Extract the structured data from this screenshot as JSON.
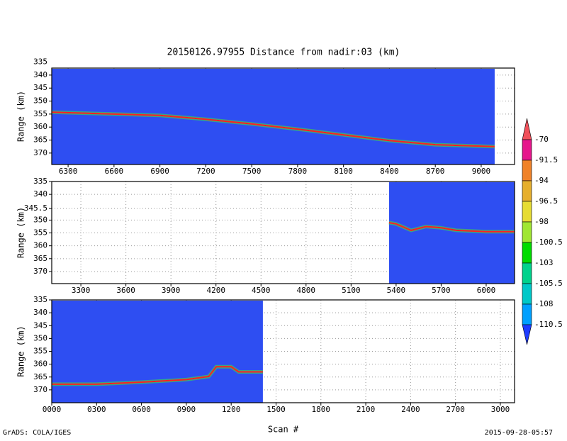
{
  "title": "20150126.97955    Distance from nadir:03 (km)",
  "footer_left": "GrADS: COLA/IGES",
  "footer_right": "2015-09-28-05:57",
  "field_color": "#2e4ef2",
  "chart_data": [
    {
      "type": "line",
      "y_label": "Range (km)",
      "y_inverted": true,
      "grid": true,
      "xlim": [
        6193,
        9218
      ],
      "ylim": [
        337.3,
        374.4
      ],
      "xticks": [
        6300,
        6600,
        6900,
        7200,
        7500,
        7800,
        8100,
        8400,
        8700,
        9000
      ],
      "yticks": [
        335,
        340,
        345,
        350,
        355,
        360,
        365,
        370
      ],
      "series": [
        {
          "color": "#ff2020",
          "x": [
            6193,
            6600,
            6900,
            7200,
            7500,
            7800,
            8100,
            8400,
            8700,
            9088
          ],
          "values": [
            354.3,
            355,
            355.5,
            357,
            358.8,
            360.8,
            363,
            365.2,
            366.8,
            367.5
          ]
        }
      ]
    },
    {
      "type": "line",
      "y_label": "Range (km)",
      "y_inverted": true,
      "grid": true,
      "xlim": [
        3106,
        6189
      ],
      "ylim": [
        335,
        374.7
      ],
      "xticks": [
        3300,
        3600,
        3900,
        4200,
        4500,
        4800,
        5100,
        5400,
        5700,
        6000
      ],
      "yticks": [
        335,
        340,
        345.5,
        350,
        355,
        360,
        365,
        370
      ],
      "series": [
        {
          "color": "#ff2020",
          "x": [
            5353,
            5400,
            5500,
            5600,
            5700,
            5800,
            6000,
            6189
          ],
          "values": [
            351,
            351.5,
            354,
            352.5,
            353,
            354,
            354.5,
            354.5
          ]
        }
      ]
    },
    {
      "type": "line",
      "y_label": "Range (km)",
      "x_label": "Scan #",
      "y_inverted": true,
      "grid": true,
      "xlim": [
        0,
        3095
      ],
      "ylim": [
        335,
        375
      ],
      "xticks": [
        {
          "value": 0,
          "label": "0000"
        },
        {
          "value": 300,
          "label": "0300"
        },
        {
          "value": 600,
          "label": "0600"
        },
        {
          "value": 900,
          "label": "0900"
        },
        1200,
        1500,
        1800,
        2100,
        2400,
        2700,
        3000
      ],
      "yticks": [
        335,
        340,
        345,
        350,
        355,
        360,
        365,
        370
      ],
      "series": [
        {
          "color": "#ff2020",
          "x": [
            0,
            300,
            600,
            900,
            1050,
            1100,
            1200,
            1250,
            1412
          ],
          "values": [
            367.8,
            367.8,
            367,
            366,
            364.8,
            361,
            361,
            363,
            363
          ]
        }
      ]
    }
  ],
  "colorbar": {
    "levels": [
      -70,
      -91.5,
      -94,
      -96.5,
      -98,
      -100.5,
      -103,
      -105.5,
      -108,
      -110.5
    ],
    "colors": [
      "#f0505a",
      "#e6168c",
      "#f08228",
      "#e6af2d",
      "#e6dc32",
      "#a0e632",
      "#00dc00",
      "#00d28c",
      "#00c8c8",
      "#00a0ff",
      "#1e3cff"
    ]
  }
}
